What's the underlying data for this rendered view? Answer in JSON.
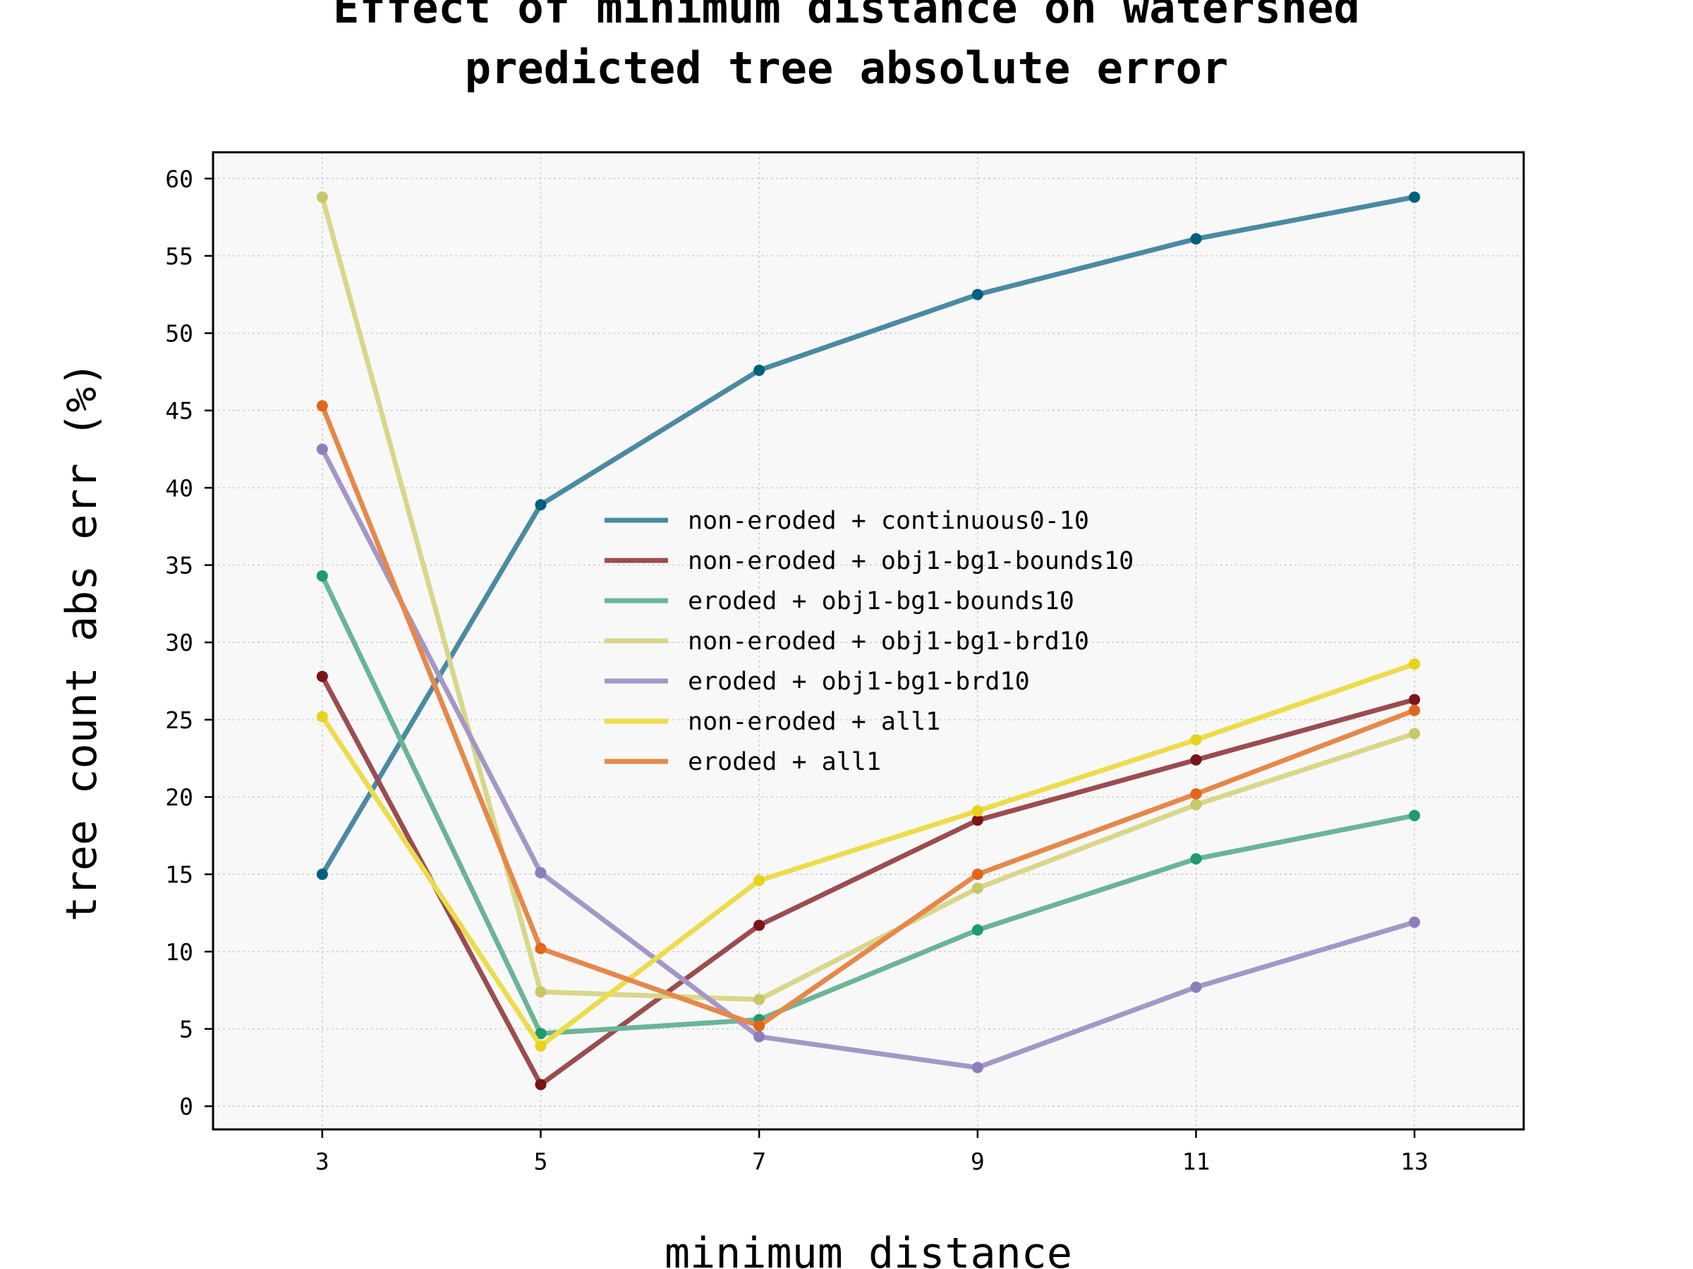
{
  "chart_data": {
    "type": "line",
    "title": "Effect of minimum distance on watershed predicted tree absolute error",
    "title_lines": [
      "Effect of minimum distance on watershed",
      "predicted tree absolute error"
    ],
    "xlabel": "minimum distance",
    "ylabel": "tree count abs err (%)",
    "x": [
      3,
      5,
      7,
      9,
      11,
      13
    ],
    "x_tick_labels": [
      "3",
      "5",
      "7",
      "9",
      "11",
      "13"
    ],
    "y_tick_values": [
      0,
      5,
      10,
      15,
      20,
      25,
      30,
      35,
      40,
      45,
      50,
      55,
      60
    ],
    "y_tick_labels": [
      "0",
      "5",
      "10",
      "15",
      "20",
      "25",
      "30",
      "35",
      "40",
      "45",
      "50",
      "55",
      "60"
    ],
    "xlim": [
      2,
      14
    ],
    "ylim": [
      -1.5,
      61.7
    ],
    "grid": true,
    "legend_position": "center",
    "plot_background": "#f8f8f8",
    "series": [
      {
        "name": "non-eroded + continuous0-10",
        "color": "#005f7f",
        "line_color": "#4a8aa3",
        "values": [
          15.0,
          38.9,
          47.6,
          52.5,
          56.1,
          58.8
        ]
      },
      {
        "name": "non-eroded + obj1-bg1-bounds10",
        "color": "#7a1418",
        "line_color": "#9b4c50",
        "values": [
          27.8,
          1.4,
          11.7,
          18.5,
          22.4,
          26.3
        ]
      },
      {
        "name": "eroded + obj1-bg1-bounds10",
        "color": "#1e9a6c",
        "line_color": "#6ab596",
        "values": [
          34.3,
          4.7,
          5.6,
          11.4,
          16.0,
          18.8
        ]
      },
      {
        "name": "non-eroded + obj1-bg1-brd10",
        "color": "#c9c766",
        "line_color": "#d8d78a",
        "values": [
          58.8,
          7.4,
          6.9,
          14.1,
          19.5,
          24.1
        ]
      },
      {
        "name": "eroded + obj1-bg1-brd10",
        "color": "#8e7dbb",
        "line_color": "#a497c8",
        "values": [
          42.5,
          15.1,
          4.5,
          2.5,
          7.7,
          11.9
        ]
      },
      {
        "name": "non-eroded + all1",
        "color": "#e8d21a",
        "line_color": "#ecdc4c",
        "values": [
          25.2,
          3.9,
          14.6,
          19.1,
          23.7,
          28.6
        ]
      },
      {
        "name": "eroded + all1",
        "color": "#e0661a",
        "line_color": "#e5884a",
        "values": [
          45.3,
          10.2,
          5.2,
          15.0,
          20.2,
          25.6
        ]
      }
    ]
  }
}
